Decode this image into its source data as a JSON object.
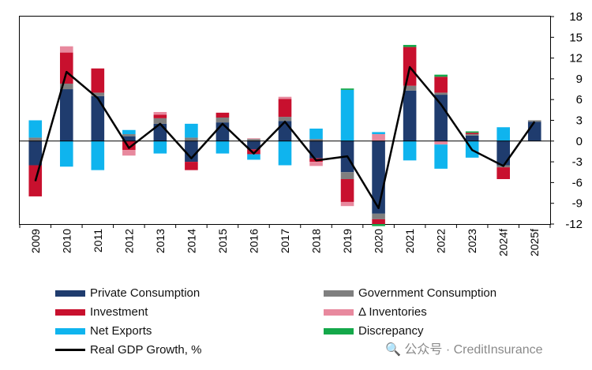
{
  "chart_data": {
    "type": "bar",
    "stacked": true,
    "categories": [
      "2009",
      "2010",
      "2011",
      "2012",
      "2013",
      "2014",
      "2015",
      "2016",
      "2017",
      "2018",
      "2019",
      "2020",
      "2021",
      "2022",
      "2023",
      "2024f",
      "2025f"
    ],
    "series": [
      {
        "name": "Private Consumption",
        "color": "#1f3c6e",
        "values": [
          -3.5,
          7.5,
          6.5,
          0.7,
          2.5,
          -3.0,
          2.7,
          -1.2,
          2.9,
          -2.5,
          -4.5,
          -10.5,
          7.3,
          6.7,
          0.8,
          -3.5,
          2.8
        ]
      },
      {
        "name": "Government Consumption",
        "color": "#7f7f7f",
        "values": [
          0.5,
          0.8,
          0.5,
          0.3,
          0.8,
          0.5,
          0.7,
          0.3,
          0.6,
          0.3,
          -1.0,
          -0.8,
          0.7,
          0.3,
          0.2,
          -0.3,
          0.2
        ]
      },
      {
        "name": "Investment",
        "color": "#c8102e",
        "values": [
          -4.5,
          4.5,
          3.5,
          -1.3,
          0.5,
          -1.2,
          0.7,
          -0.7,
          2.6,
          -0.5,
          -3.3,
          -0.7,
          5.6,
          2.3,
          0.2,
          -1.7,
          0.0
        ]
      },
      {
        "name": "Δ Inventories",
        "color": "#e8899e",
        "values": [
          0.0,
          0.9,
          0.0,
          -0.8,
          0.4,
          0.0,
          0.0,
          0.1,
          0.3,
          -0.6,
          -0.6,
          1.0,
          0.0,
          -0.5,
          0.0,
          0.0,
          0.0
        ]
      },
      {
        "name": "Net Exports",
        "color": "#0fb4ee",
        "values": [
          2.5,
          -3.7,
          -4.2,
          0.6,
          -1.8,
          2.0,
          -1.8,
          -0.8,
          -3.5,
          1.5,
          7.4,
          0.3,
          -2.8,
          -3.5,
          -2.4,
          2.0,
          0.0
        ]
      },
      {
        "name": "Discrepancy",
        "color": "#14a84a",
        "values": [
          0.0,
          0.0,
          0.0,
          0.0,
          0.0,
          0.0,
          0.0,
          0.0,
          0.0,
          0.0,
          0.2,
          -0.3,
          0.3,
          0.3,
          0.2,
          0.0,
          0.0
        ]
      }
    ],
    "line": {
      "name": "Real GDP Growth, %",
      "color": "#000000",
      "values": [
        -5.8,
        10.0,
        6.2,
        -1.0,
        2.5,
        -2.5,
        2.5,
        -1.8,
        2.8,
        -2.8,
        -2.2,
        -9.7,
        10.7,
        5.3,
        -1.3,
        -3.6,
        2.8
      ]
    },
    "ylim": [
      -12,
      18
    ],
    "yticks": [
      -12,
      -9,
      -6,
      -3,
      0,
      3,
      6,
      9,
      12,
      15,
      18
    ],
    "y_axis_side": "right",
    "grid": false,
    "legend_position": "bottom"
  },
  "watermark": "🔍 公众号 · CreditInsurance"
}
